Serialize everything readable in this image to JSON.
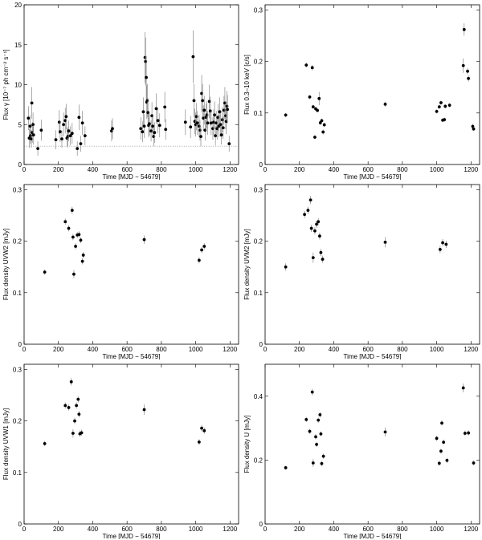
{
  "chart_data": [
    {
      "type": "scatter",
      "xlabel": "Time [MJD − 54679]",
      "ylabel": "Flux γ [10⁻⁷ ph cm⁻² s⁻¹]",
      "xlim": [
        0,
        1250
      ],
      "ylim": [
        0,
        20
      ],
      "xticks": [
        0,
        200,
        400,
        600,
        800,
        1000,
        1200
      ],
      "yticks": [
        0,
        5,
        10,
        15,
        20
      ],
      "ytick_labels": [
        "0",
        "5",
        "10",
        "15",
        "20"
      ],
      "reference_line_y": 2.3,
      "points": [
        {
          "x": 25,
          "y": 5.8,
          "err": 1.5
        },
        {
          "x": 30,
          "y": 3.3,
          "err": 1.2
        },
        {
          "x": 35,
          "y": 4.8,
          "err": 1.4
        },
        {
          "x": 38,
          "y": 3.6,
          "err": 1.0
        },
        {
          "x": 42,
          "y": 3.2,
          "err": 1.1
        },
        {
          "x": 45,
          "y": 7.7,
          "err": 2.0
        },
        {
          "x": 48,
          "y": 4.0,
          "err": 1.3
        },
        {
          "x": 52,
          "y": 5.0,
          "err": 1.5
        },
        {
          "x": 55,
          "y": 3.7,
          "err": 1.2
        },
        {
          "x": 80,
          "y": 2.0,
          "err": 0.9
        },
        {
          "x": 100,
          "y": 4.3,
          "err": 1.3
        },
        {
          "x": 185,
          "y": 3.1,
          "err": 1.2
        },
        {
          "x": 205,
          "y": 5.3,
          "err": 1.5
        },
        {
          "x": 210,
          "y": 4.1,
          "err": 1.3
        },
        {
          "x": 220,
          "y": 3.2,
          "err": 1.1
        },
        {
          "x": 230,
          "y": 5.0,
          "err": 1.5
        },
        {
          "x": 240,
          "y": 5.5,
          "err": 1.6
        },
        {
          "x": 245,
          "y": 6.0,
          "err": 1.6
        },
        {
          "x": 250,
          "y": 3.3,
          "err": 1.2
        },
        {
          "x": 255,
          "y": 3.5,
          "err": 1.2
        },
        {
          "x": 260,
          "y": 4.2,
          "err": 1.3
        },
        {
          "x": 270,
          "y": 3.6,
          "err": 1.2
        },
        {
          "x": 280,
          "y": 3.9,
          "err": 1.3
        },
        {
          "x": 310,
          "y": 2.0,
          "err": 0.9
        },
        {
          "x": 320,
          "y": 5.9,
          "err": 1.6
        },
        {
          "x": 330,
          "y": 2.6,
          "err": 1.0
        },
        {
          "x": 340,
          "y": 5.2,
          "err": 1.5
        },
        {
          "x": 355,
          "y": 3.6,
          "err": 1.2
        },
        {
          "x": 510,
          "y": 4.2,
          "err": 1.3
        },
        {
          "x": 515,
          "y": 4.5,
          "err": 1.3
        },
        {
          "x": 680,
          "y": 4.5,
          "err": 1.4
        },
        {
          "x": 690,
          "y": 4.1,
          "err": 1.3
        },
        {
          "x": 695,
          "y": 6.6,
          "err": 1.8
        },
        {
          "x": 700,
          "y": 4.8,
          "err": 1.5
        },
        {
          "x": 705,
          "y": 13.4,
          "err": 3.2
        },
        {
          "x": 708,
          "y": 12.9,
          "err": 3.0
        },
        {
          "x": 712,
          "y": 10.9,
          "err": 2.7
        },
        {
          "x": 715,
          "y": 7.8,
          "err": 2.1
        },
        {
          "x": 718,
          "y": 8.0,
          "err": 2.1
        },
        {
          "x": 722,
          "y": 6.5,
          "err": 1.8
        },
        {
          "x": 726,
          "y": 4.9,
          "err": 1.5
        },
        {
          "x": 730,
          "y": 5.1,
          "err": 1.5
        },
        {
          "x": 740,
          "y": 4.2,
          "err": 1.3
        },
        {
          "x": 745,
          "y": 6.1,
          "err": 1.7
        },
        {
          "x": 750,
          "y": 4.8,
          "err": 1.4
        },
        {
          "x": 755,
          "y": 3.5,
          "err": 1.2
        },
        {
          "x": 760,
          "y": 4.0,
          "err": 1.3
        },
        {
          "x": 770,
          "y": 7.0,
          "err": 1.9
        },
        {
          "x": 780,
          "y": 5.5,
          "err": 1.6
        },
        {
          "x": 790,
          "y": 4.9,
          "err": 1.5
        },
        {
          "x": 820,
          "y": 7.2,
          "err": 1.9
        },
        {
          "x": 825,
          "y": 4.4,
          "err": 1.3
        },
        {
          "x": 940,
          "y": 5.3,
          "err": 1.6
        },
        {
          "x": 970,
          "y": 4.7,
          "err": 1.4
        },
        {
          "x": 985,
          "y": 13.5,
          "err": 3.3
        },
        {
          "x": 990,
          "y": 8.0,
          "err": 2.1
        },
        {
          "x": 995,
          "y": 5.4,
          "err": 1.6
        },
        {
          "x": 1000,
          "y": 5.0,
          "err": 1.5
        },
        {
          "x": 1005,
          "y": 6.0,
          "err": 1.7
        },
        {
          "x": 1010,
          "y": 5.2,
          "err": 1.5
        },
        {
          "x": 1020,
          "y": 4.8,
          "err": 1.4
        },
        {
          "x": 1025,
          "y": 4.3,
          "err": 1.3
        },
        {
          "x": 1030,
          "y": 3.5,
          "err": 1.2
        },
        {
          "x": 1035,
          "y": 8.9,
          "err": 2.3
        },
        {
          "x": 1040,
          "y": 8.0,
          "err": 2.1
        },
        {
          "x": 1045,
          "y": 5.8,
          "err": 1.6
        },
        {
          "x": 1050,
          "y": 6.8,
          "err": 1.8
        },
        {
          "x": 1055,
          "y": 4.3,
          "err": 1.3
        },
        {
          "x": 1060,
          "y": 5.9,
          "err": 1.7
        },
        {
          "x": 1065,
          "y": 6.2,
          "err": 1.7
        },
        {
          "x": 1070,
          "y": 5.2,
          "err": 1.5
        },
        {
          "x": 1080,
          "y": 7.9,
          "err": 2.1
        },
        {
          "x": 1085,
          "y": 6.7,
          "err": 1.8
        },
        {
          "x": 1090,
          "y": 5.2,
          "err": 1.5
        },
        {
          "x": 1100,
          "y": 4.5,
          "err": 1.4
        },
        {
          "x": 1105,
          "y": 5.3,
          "err": 1.6
        },
        {
          "x": 1110,
          "y": 6.2,
          "err": 1.7
        },
        {
          "x": 1115,
          "y": 3.6,
          "err": 1.2
        },
        {
          "x": 1120,
          "y": 5.2,
          "err": 1.5
        },
        {
          "x": 1125,
          "y": 4.5,
          "err": 1.4
        },
        {
          "x": 1130,
          "y": 5.9,
          "err": 1.7
        },
        {
          "x": 1135,
          "y": 4.8,
          "err": 1.4
        },
        {
          "x": 1140,
          "y": 6.6,
          "err": 1.8
        },
        {
          "x": 1145,
          "y": 5.0,
          "err": 1.5
        },
        {
          "x": 1150,
          "y": 3.7,
          "err": 1.2
        },
        {
          "x": 1155,
          "y": 5.6,
          "err": 1.6
        },
        {
          "x": 1160,
          "y": 4.6,
          "err": 1.4
        },
        {
          "x": 1165,
          "y": 6.8,
          "err": 1.8
        },
        {
          "x": 1170,
          "y": 7.7,
          "err": 2.0
        },
        {
          "x": 1175,
          "y": 6.1,
          "err": 1.7
        },
        {
          "x": 1178,
          "y": 5.4,
          "err": 1.6
        },
        {
          "x": 1182,
          "y": 7.3,
          "err": 1.9
        },
        {
          "x": 1185,
          "y": 6.9,
          "err": 1.8
        },
        {
          "x": 1195,
          "y": 2.6,
          "err": 1.0
        }
      ]
    },
    {
      "type": "scatter",
      "xlabel": "Time [MJD − 54679]",
      "ylabel": "Flux 0.3–10 keV [c/s]",
      "xlim": [
        0,
        1250
      ],
      "ylim": [
        0,
        0.31
      ],
      "xticks": [
        0,
        200,
        400,
        600,
        800,
        1000,
        1200
      ],
      "yticks": [
        0,
        0.1,
        0.2,
        0.3
      ],
      "ytick_labels": [
        "0",
        "0.1",
        "0.2",
        "0.3"
      ],
      "points": [
        {
          "x": 120,
          "y": 0.096,
          "err": 0.004
        },
        {
          "x": 240,
          "y": 0.193,
          "err": 0.005
        },
        {
          "x": 260,
          "y": 0.131,
          "err": 0.004
        },
        {
          "x": 275,
          "y": 0.188,
          "err": 0.005
        },
        {
          "x": 280,
          "y": 0.112,
          "err": 0.004
        },
        {
          "x": 290,
          "y": 0.053,
          "err": 0.004
        },
        {
          "x": 295,
          "y": 0.108,
          "err": 0.004
        },
        {
          "x": 305,
          "y": 0.105,
          "err": 0.004
        },
        {
          "x": 315,
          "y": 0.128,
          "err": 0.013
        },
        {
          "x": 322,
          "y": 0.081,
          "err": 0.004
        },
        {
          "x": 330,
          "y": 0.085,
          "err": 0.004
        },
        {
          "x": 338,
          "y": 0.063,
          "err": 0.005
        },
        {
          "x": 345,
          "y": 0.077,
          "err": 0.004
        },
        {
          "x": 700,
          "y": 0.117,
          "err": 0.005
        },
        {
          "x": 1000,
          "y": 0.103,
          "err": 0.004
        },
        {
          "x": 1015,
          "y": 0.112,
          "err": 0.004
        },
        {
          "x": 1025,
          "y": 0.12,
          "err": 0.004
        },
        {
          "x": 1035,
          "y": 0.086,
          "err": 0.004
        },
        {
          "x": 1045,
          "y": 0.087,
          "err": 0.004
        },
        {
          "x": 1050,
          "y": 0.113,
          "err": 0.004
        },
        {
          "x": 1075,
          "y": 0.115,
          "err": 0.004
        },
        {
          "x": 1155,
          "y": 0.192,
          "err": 0.014
        },
        {
          "x": 1160,
          "y": 0.262,
          "err": 0.012
        },
        {
          "x": 1180,
          "y": 0.181,
          "err": 0.006
        },
        {
          "x": 1185,
          "y": 0.167,
          "err": 0.006
        },
        {
          "x": 1210,
          "y": 0.074,
          "err": 0.005
        },
        {
          "x": 1215,
          "y": 0.069,
          "err": 0.004
        }
      ]
    },
    {
      "type": "scatter",
      "xlabel": "Time [MJD − 54679]",
      "ylabel": "Flux density UVW2 [mJy]",
      "xlim": [
        0,
        1250
      ],
      "ylim": [
        0,
        0.31
      ],
      "xticks": [
        0,
        200,
        400,
        600,
        800,
        1000,
        1200
      ],
      "yticks": [
        0,
        0.1,
        0.2,
        0.3
      ],
      "ytick_labels": [
        "0",
        "0.1",
        "0.2",
        "0.3"
      ],
      "points": [
        {
          "x": 120,
          "y": 0.14,
          "err": 0.005
        },
        {
          "x": 240,
          "y": 0.238,
          "err": 0.006
        },
        {
          "x": 260,
          "y": 0.225,
          "err": 0.006
        },
        {
          "x": 280,
          "y": 0.26,
          "err": 0.007
        },
        {
          "x": 285,
          "y": 0.208,
          "err": 0.006
        },
        {
          "x": 290,
          "y": 0.136,
          "err": 0.008
        },
        {
          "x": 300,
          "y": 0.19,
          "err": 0.006
        },
        {
          "x": 310,
          "y": 0.212,
          "err": 0.006
        },
        {
          "x": 320,
          "y": 0.213,
          "err": 0.006
        },
        {
          "x": 330,
          "y": 0.202,
          "err": 0.006
        },
        {
          "x": 340,
          "y": 0.161,
          "err": 0.006
        },
        {
          "x": 345,
          "y": 0.173,
          "err": 0.006
        },
        {
          "x": 700,
          "y": 0.203,
          "err": 0.008
        },
        {
          "x": 1020,
          "y": 0.163,
          "err": 0.006
        },
        {
          "x": 1035,
          "y": 0.183,
          "err": 0.006
        },
        {
          "x": 1050,
          "y": 0.19,
          "err": 0.006
        }
      ]
    },
    {
      "type": "scatter",
      "xlabel": "Time [MJD − 54679]",
      "ylabel": "Flux density UVM2 [mJy]",
      "xlim": [
        0,
        1250
      ],
      "ylim": [
        0,
        0.31
      ],
      "xticks": [
        0,
        200,
        400,
        600,
        800,
        1000,
        1200
      ],
      "yticks": [
        0,
        0.1,
        0.2,
        0.3
      ],
      "ytick_labels": [
        "0",
        "0.1",
        "0.2",
        "0.3"
      ],
      "points": [
        {
          "x": 120,
          "y": 0.15,
          "err": 0.007
        },
        {
          "x": 230,
          "y": 0.252,
          "err": 0.007
        },
        {
          "x": 250,
          "y": 0.26,
          "err": 0.007
        },
        {
          "x": 265,
          "y": 0.28,
          "err": 0.008
        },
        {
          "x": 270,
          "y": 0.225,
          "err": 0.007
        },
        {
          "x": 280,
          "y": 0.168,
          "err": 0.01
        },
        {
          "x": 290,
          "y": 0.22,
          "err": 0.007
        },
        {
          "x": 300,
          "y": 0.233,
          "err": 0.007
        },
        {
          "x": 310,
          "y": 0.238,
          "err": 0.007
        },
        {
          "x": 318,
          "y": 0.21,
          "err": 0.007
        },
        {
          "x": 325,
          "y": 0.178,
          "err": 0.007
        },
        {
          "x": 335,
          "y": 0.165,
          "err": 0.007
        },
        {
          "x": 700,
          "y": 0.198,
          "err": 0.01
        },
        {
          "x": 1020,
          "y": 0.184,
          "err": 0.007
        },
        {
          "x": 1035,
          "y": 0.197,
          "err": 0.007
        },
        {
          "x": 1055,
          "y": 0.194,
          "err": 0.007
        }
      ]
    },
    {
      "type": "scatter",
      "xlabel": "Time [MJD − 54679]",
      "ylabel": "Flux density UVW1 [mJy]",
      "xlim": [
        0,
        1250
      ],
      "ylim": [
        0,
        0.31
      ],
      "xticks": [
        0,
        200,
        400,
        600,
        800,
        1000,
        1200
      ],
      "yticks": [
        0,
        0.1,
        0.2,
        0.3
      ],
      "ytick_labels": [
        "0",
        "0.1",
        "0.2",
        "0.3"
      ],
      "points": [
        {
          "x": 120,
          "y": 0.156,
          "err": 0.005
        },
        {
          "x": 240,
          "y": 0.23,
          "err": 0.006
        },
        {
          "x": 260,
          "y": 0.226,
          "err": 0.006
        },
        {
          "x": 275,
          "y": 0.276,
          "err": 0.007
        },
        {
          "x": 285,
          "y": 0.176,
          "err": 0.008
        },
        {
          "x": 295,
          "y": 0.2,
          "err": 0.006
        },
        {
          "x": 305,
          "y": 0.23,
          "err": 0.006
        },
        {
          "x": 315,
          "y": 0.242,
          "err": 0.006
        },
        {
          "x": 320,
          "y": 0.213,
          "err": 0.006
        },
        {
          "x": 325,
          "y": 0.175,
          "err": 0.006
        },
        {
          "x": 335,
          "y": 0.177,
          "err": 0.006
        },
        {
          "x": 700,
          "y": 0.222,
          "err": 0.01
        },
        {
          "x": 1020,
          "y": 0.159,
          "err": 0.006
        },
        {
          "x": 1035,
          "y": 0.186,
          "err": 0.006
        },
        {
          "x": 1050,
          "y": 0.181,
          "err": 0.006
        }
      ]
    },
    {
      "type": "scatter",
      "xlabel": "Time [MJD − 54679]",
      "ylabel": "Flux density U [mJy]",
      "xlim": [
        0,
        1250
      ],
      "ylim": [
        0,
        0.5
      ],
      "xticks": [
        0,
        200,
        400,
        600,
        800,
        1000,
        1200
      ],
      "yticks": [
        0,
        0.2,
        0.4
      ],
      "ytick_labels": [
        "0",
        "0.2",
        "0.4"
      ],
      "points": [
        {
          "x": 120,
          "y": 0.176,
          "err": 0.006
        },
        {
          "x": 240,
          "y": 0.327,
          "err": 0.008
        },
        {
          "x": 260,
          "y": 0.29,
          "err": 0.008
        },
        {
          "x": 275,
          "y": 0.413,
          "err": 0.01
        },
        {
          "x": 280,
          "y": 0.191,
          "err": 0.012
        },
        {
          "x": 295,
          "y": 0.273,
          "err": 0.008
        },
        {
          "x": 300,
          "y": 0.249,
          "err": 0.008
        },
        {
          "x": 310,
          "y": 0.325,
          "err": 0.008
        },
        {
          "x": 320,
          "y": 0.342,
          "err": 0.008
        },
        {
          "x": 325,
          "y": 0.282,
          "err": 0.008
        },
        {
          "x": 330,
          "y": 0.189,
          "err": 0.008
        },
        {
          "x": 340,
          "y": 0.212,
          "err": 0.008
        },
        {
          "x": 700,
          "y": 0.288,
          "err": 0.014
        },
        {
          "x": 1000,
          "y": 0.268,
          "err": 0.008
        },
        {
          "x": 1015,
          "y": 0.19,
          "err": 0.008
        },
        {
          "x": 1025,
          "y": 0.228,
          "err": 0.008
        },
        {
          "x": 1030,
          "y": 0.316,
          "err": 0.008
        },
        {
          "x": 1040,
          "y": 0.256,
          "err": 0.008
        },
        {
          "x": 1060,
          "y": 0.199,
          "err": 0.008
        },
        {
          "x": 1155,
          "y": 0.426,
          "err": 0.014
        },
        {
          "x": 1165,
          "y": 0.284,
          "err": 0.008
        },
        {
          "x": 1185,
          "y": 0.285,
          "err": 0.008
        },
        {
          "x": 1215,
          "y": 0.191,
          "err": 0.008
        }
      ]
    }
  ]
}
